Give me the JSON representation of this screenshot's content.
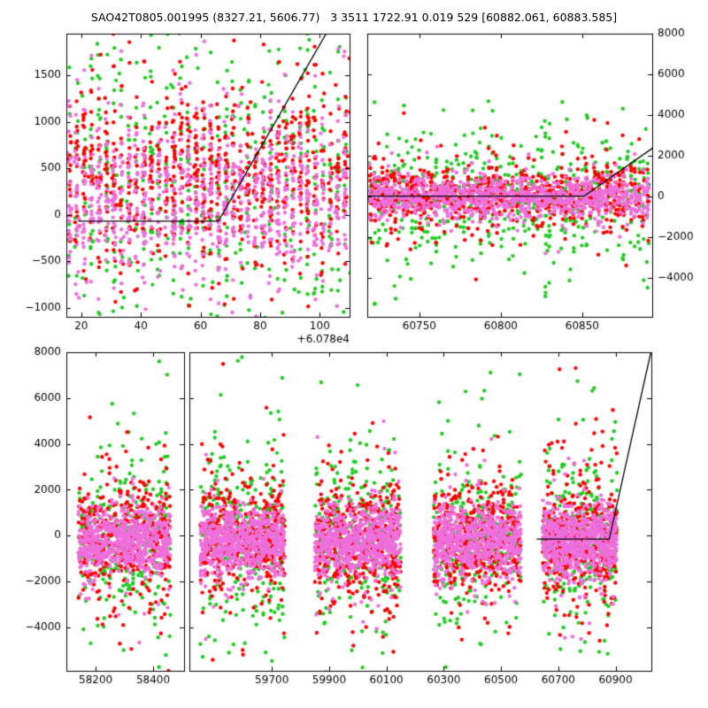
{
  "title": "SAO42T0805.001995 (8327.21, 5606.77)   3 3511 1722.91 0.019 529 [60882.061, 60883.585]",
  "colors": {
    "red": "#ff0000",
    "green": "#22cc22",
    "violet": "#ee6fdd",
    "line": "#000000",
    "frame": "#000000",
    "text": "#000000",
    "background": "#ffffff"
  },
  "chart_data": [
    {
      "name": "top-left-zoom",
      "type": "scatter",
      "xlim": [
        15,
        110
      ],
      "ylim": [
        -1100,
        1950
      ],
      "xticks": [
        20,
        40,
        60,
        80,
        100
      ],
      "xtick_labels": [
        "20",
        "40",
        "60",
        "80",
        "100"
      ],
      "x_offset_label": "+6.078e4",
      "yticks": [
        -1000,
        -500,
        0,
        500,
        1000,
        1500
      ],
      "ytick_labels": [
        "−1000",
        "−500",
        "0",
        "500",
        "1000",
        "1500"
      ],
      "y_label_side": "left",
      "grid": false,
      "seed": 11,
      "series": [
        {
          "name": "green-band",
          "color": "green",
          "clusters": [
            {
              "x_min": 16,
              "x_max": 109,
              "x_mode": "nights",
              "spacing": 2.5,
              "jitter": 0.35,
              "count": 560,
              "y_mean": 350,
              "y_sigma": 850,
              "tail_frac": 0.12,
              "tail_sigma": 1300
            }
          ]
        },
        {
          "name": "red-band",
          "color": "red",
          "clusters": [
            {
              "x_min": 16,
              "x_max": 109,
              "x_mode": "nights",
              "spacing": 2.5,
              "jitter": 0.35,
              "count": 820,
              "y_mean": 430,
              "y_sigma": 430,
              "tail_frac": 0.25,
              "tail_sigma": 900
            }
          ]
        },
        {
          "name": "violet-band",
          "color": "violet",
          "clusters": [
            {
              "x_min": 16,
              "x_max": 109,
              "x_mode": "nights",
              "spacing": 2.5,
              "jitter": 0.35,
              "count": 900,
              "y_mean": 190,
              "y_sigma": 400,
              "tail_frac": 0.2,
              "tail_sigma": 800
            }
          ]
        }
      ],
      "line": {
        "points": [
          [
            19,
            -70
          ],
          [
            66,
            -70
          ],
          [
            110,
            2390
          ]
        ]
      }
    },
    {
      "name": "top-right-zoom",
      "type": "scatter",
      "xlim": [
        60718,
        60893
      ],
      "ylim": [
        -5900,
        8000
      ],
      "xticks": [
        60750,
        60800,
        60850
      ],
      "xtick_labels": [
        "60750",
        "60800",
        "60850"
      ],
      "yticks": [
        -4000,
        -2000,
        0,
        2000,
        4000,
        6000,
        8000
      ],
      "ytick_labels": [
        "−4000",
        "−2000",
        "0",
        "2000",
        "4000",
        "6000",
        "8000"
      ],
      "y_label_side": "right",
      "grid": false,
      "seed": 22,
      "series": [
        {
          "name": "green-band",
          "color": "green",
          "clusters": [
            {
              "x_min": 60720,
              "x_max": 60890,
              "x_mode": "nights",
              "spacing": 2.5,
              "jitter": 0.4,
              "count": 520,
              "y_mean": 0,
              "y_sigma": 1500,
              "tail_frac": 0.22,
              "tail_sigma": 3000
            }
          ]
        },
        {
          "name": "red-band",
          "color": "red",
          "clusters": [
            {
              "x_min": 60720,
              "x_max": 60890,
              "x_mode": "nights",
              "spacing": 2.5,
              "jitter": 0.4,
              "count": 820,
              "y_mean": 80,
              "y_sigma": 650,
              "tail_frac": 0.2,
              "tail_sigma": 1600
            }
          ]
        },
        {
          "name": "violet-band",
          "color": "violet",
          "clusters": [
            {
              "x_min": 60720,
              "x_max": 60890,
              "x_mode": "nights",
              "spacing": 2.5,
              "jitter": 0.4,
              "count": 1000,
              "y_mean": -50,
              "y_sigma": 480,
              "tail_frac": 0.15,
              "tail_sigma": 1100
            }
          ]
        }
      ],
      "line": {
        "points": [
          [
            60718,
            20
          ],
          [
            60851,
            20
          ],
          [
            60893,
            2370
          ]
        ]
      }
    },
    {
      "name": "bottom-left-season",
      "type": "scatter",
      "xlim": [
        58098,
        58508
      ],
      "ylim": [
        -5900,
        8000
      ],
      "xticks": [
        58200,
        58400
      ],
      "xtick_labels": [
        "58200",
        "58400"
      ],
      "yticks": [
        -4000,
        -2000,
        0,
        2000,
        4000,
        6000,
        8000
      ],
      "ytick_labels": [
        "−4000",
        "−2000",
        "0",
        "2000",
        "4000",
        "6000",
        "8000"
      ],
      "y_label_side": "left",
      "grid": false,
      "seed": 33,
      "series": [
        {
          "name": "green-band",
          "color": "green",
          "clusters": [
            {
              "x_min": 58140,
              "x_max": 58460,
              "count": 280,
              "y_mean": -200,
              "y_sigma": 1600,
              "tail_frac": 0.28,
              "tail_sigma": 3200
            }
          ]
        },
        {
          "name": "red-band",
          "color": "red",
          "clusters": [
            {
              "x_min": 58140,
              "x_max": 58460,
              "count": 440,
              "y_mean": -100,
              "y_sigma": 1050,
              "tail_frac": 0.25,
              "tail_sigma": 2300
            }
          ]
        },
        {
          "name": "violet-band",
          "color": "violet",
          "clusters": [
            {
              "x_min": 58140,
              "x_max": 58460,
              "count": 660,
              "y_mean": -250,
              "y_sigma": 720,
              "tail_frac": 0.12,
              "tail_sigma": 1600
            }
          ]
        }
      ]
    },
    {
      "name": "bottom-right-seasons",
      "type": "scatter",
      "xlim": [
        59412,
        61025
      ],
      "ylim": [
        -5900,
        8000
      ],
      "xticks": [
        59700,
        59900,
        60100,
        60300,
        60500,
        60700,
        60900
      ],
      "xtick_labels": [
        "59700",
        "59900",
        "60100",
        "60300",
        "60500",
        "60700",
        "60900"
      ],
      "yticks": [
        -4000,
        -2000,
        0,
        2000,
        4000,
        6000,
        8000
      ],
      "ytick_labels": [
        "−4000",
        "−2000",
        "0",
        "2000",
        "4000",
        "6000",
        "8000"
      ],
      "y_label_side": "none",
      "grid": false,
      "seed": 44,
      "series": [
        {
          "name": "green-band",
          "color": "green",
          "clusters": [
            {
              "x_min": 59450,
              "x_max": 59745,
              "count": 280,
              "y_mean": -200,
              "y_sigma": 1600,
              "tail_frac": 0.28,
              "tail_sigma": 3200
            },
            {
              "x_min": 59850,
              "x_max": 60150,
              "count": 290,
              "y_mean": -200,
              "y_sigma": 1600,
              "tail_frac": 0.28,
              "tail_sigma": 3200
            },
            {
              "x_min": 60265,
              "x_max": 60570,
              "count": 290,
              "y_mean": -200,
              "y_sigma": 1600,
              "tail_frac": 0.28,
              "tail_sigma": 3200
            },
            {
              "x_min": 60645,
              "x_max": 60905,
              "count": 310,
              "y_mean": -200,
              "y_sigma": 1600,
              "tail_frac": 0.28,
              "tail_sigma": 3200
            }
          ]
        },
        {
          "name": "red-band",
          "color": "red",
          "clusters": [
            {
              "x_min": 59450,
              "x_max": 59745,
              "count": 440,
              "y_mean": -100,
              "y_sigma": 1050,
              "tail_frac": 0.25,
              "tail_sigma": 2300
            },
            {
              "x_min": 59850,
              "x_max": 60150,
              "count": 460,
              "y_mean": -100,
              "y_sigma": 1050,
              "tail_frac": 0.25,
              "tail_sigma": 2300
            },
            {
              "x_min": 60265,
              "x_max": 60570,
              "count": 460,
              "y_mean": -100,
              "y_sigma": 1050,
              "tail_frac": 0.25,
              "tail_sigma": 2300
            },
            {
              "x_min": 60645,
              "x_max": 60905,
              "count": 480,
              "y_mean": -100,
              "y_sigma": 1050,
              "tail_frac": 0.25,
              "tail_sigma": 2300
            }
          ]
        },
        {
          "name": "violet-band",
          "color": "violet",
          "clusters": [
            {
              "x_min": 59450,
              "x_max": 59745,
              "count": 660,
              "y_mean": -250,
              "y_sigma": 720,
              "tail_frac": 0.12,
              "tail_sigma": 1600
            },
            {
              "x_min": 59850,
              "x_max": 60150,
              "count": 690,
              "y_mean": -250,
              "y_sigma": 720,
              "tail_frac": 0.12,
              "tail_sigma": 1600
            },
            {
              "x_min": 60265,
              "x_max": 60570,
              "count": 690,
              "y_mean": -250,
              "y_sigma": 720,
              "tail_frac": 0.12,
              "tail_sigma": 1600
            },
            {
              "x_min": 60645,
              "x_max": 60905,
              "count": 730,
              "y_mean": -250,
              "y_sigma": 720,
              "tail_frac": 0.12,
              "tail_sigma": 1600
            }
          ]
        }
      ],
      "line": {
        "points": [
          [
            60624,
            -150
          ],
          [
            60878,
            -150
          ],
          [
            61025,
            8100
          ]
        ]
      }
    }
  ]
}
